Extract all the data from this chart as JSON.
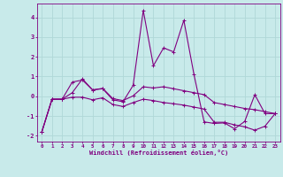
{
  "xlabel": "Windchill (Refroidissement éolien,°C)",
  "bg_color": "#c8eaea",
  "line_color": "#800080",
  "grid_color": "#b0d8d8",
  "xlim": [
    -0.5,
    23.5
  ],
  "ylim": [
    -2.3,
    4.7
  ],
  "xticks": [
    0,
    1,
    2,
    3,
    4,
    5,
    6,
    7,
    8,
    9,
    10,
    11,
    12,
    13,
    14,
    15,
    16,
    17,
    18,
    19,
    20,
    21,
    22,
    23
  ],
  "yticks": [
    -2,
    -1,
    0,
    1,
    2,
    3,
    4
  ],
  "series1_x": [
    0,
    1,
    2,
    3,
    4,
    5,
    6,
    7,
    8,
    9,
    10,
    11,
    12,
    13,
    14,
    15,
    16,
    17,
    18,
    19,
    20,
    21,
    22,
    23
  ],
  "series1_y": [
    -1.8,
    -0.15,
    -0.15,
    0.72,
    0.82,
    0.32,
    0.38,
    -0.18,
    -0.28,
    0.55,
    4.35,
    1.55,
    2.45,
    2.25,
    3.85,
    1.1,
    -1.3,
    -1.38,
    -1.35,
    -1.65,
    -1.28,
    0.08,
    -0.88,
    -0.88
  ],
  "series2_x": [
    0,
    1,
    2,
    3,
    4,
    5,
    6,
    7,
    8,
    9,
    10,
    11,
    12,
    13,
    14,
    15,
    16,
    17,
    18,
    19,
    20,
    21,
    22,
    23
  ],
  "series2_y": [
    -1.8,
    -0.15,
    -0.15,
    0.18,
    0.88,
    0.32,
    0.4,
    -0.12,
    -0.22,
    0.02,
    0.48,
    0.42,
    0.48,
    0.38,
    0.28,
    0.18,
    0.08,
    -0.32,
    -0.42,
    -0.52,
    -0.62,
    -0.68,
    -0.78,
    -0.88
  ],
  "series3_x": [
    0,
    1,
    2,
    3,
    4,
    5,
    6,
    7,
    8,
    9,
    10,
    11,
    12,
    13,
    14,
    15,
    16,
    17,
    18,
    19,
    20,
    21,
    22,
    23
  ],
  "series3_y": [
    -1.8,
    -0.15,
    -0.15,
    -0.05,
    -0.05,
    -0.18,
    -0.08,
    -0.42,
    -0.52,
    -0.32,
    -0.15,
    -0.22,
    -0.32,
    -0.38,
    -0.45,
    -0.55,
    -0.65,
    -1.32,
    -1.32,
    -1.45,
    -1.55,
    -1.72,
    -1.52,
    -0.88
  ]
}
